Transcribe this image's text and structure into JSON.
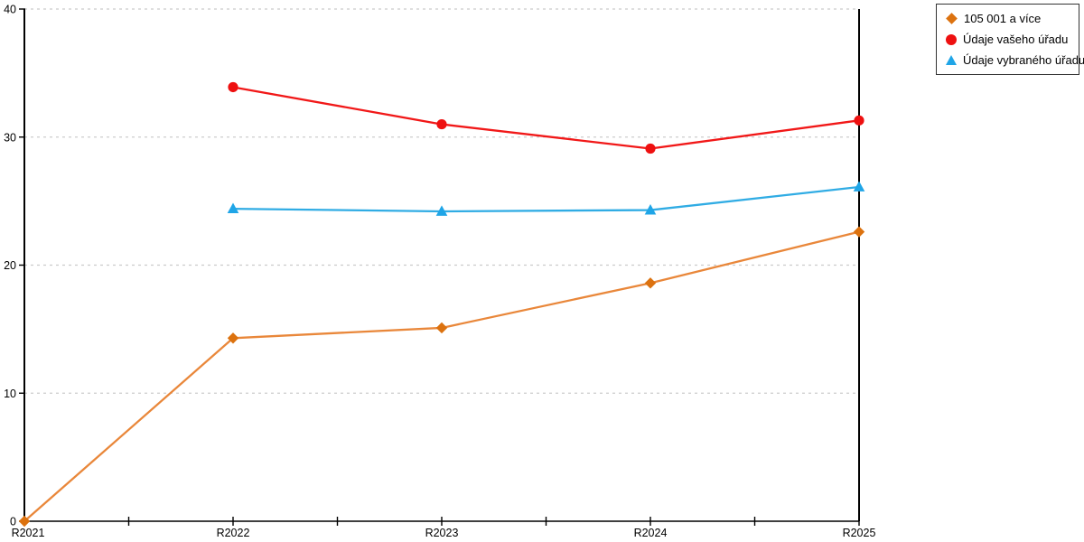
{
  "chart_data": {
    "type": "line",
    "title": "",
    "xlabel": "",
    "ylabel": "",
    "categories": [
      "R2021",
      "R2022",
      "R2023",
      "R2024",
      "R2025"
    ],
    "series": [
      {
        "name": "105 001 a více",
        "marker": "diamond",
        "line_color": "#E9873A",
        "marker_color": "#DC720F",
        "values": [
          0,
          14.3,
          15.1,
          18.6,
          22.6
        ]
      },
      {
        "name": "Údaje vašeho úřadu",
        "marker": "circle",
        "line_color": "#F11818",
        "marker_color": "#EE1010",
        "values": [
          null,
          33.9,
          31.0,
          29.1,
          31.3
        ]
      },
      {
        "name": "Údaje vybraného úřadu",
        "marker": "triangle",
        "line_color": "#30ACE4",
        "marker_color": "#1FA5E7",
        "values": [
          null,
          24.4,
          24.2,
          24.3,
          26.1
        ]
      }
    ],
    "ylim": [
      0,
      40
    ],
    "yticks": [
      0,
      10,
      20,
      30,
      40
    ],
    "grid": "horizontal-dashed",
    "grid_color": "#CBCBCB",
    "axis_color": "#000000",
    "background": "#FFFFFF",
    "legend_position": "top-right"
  }
}
